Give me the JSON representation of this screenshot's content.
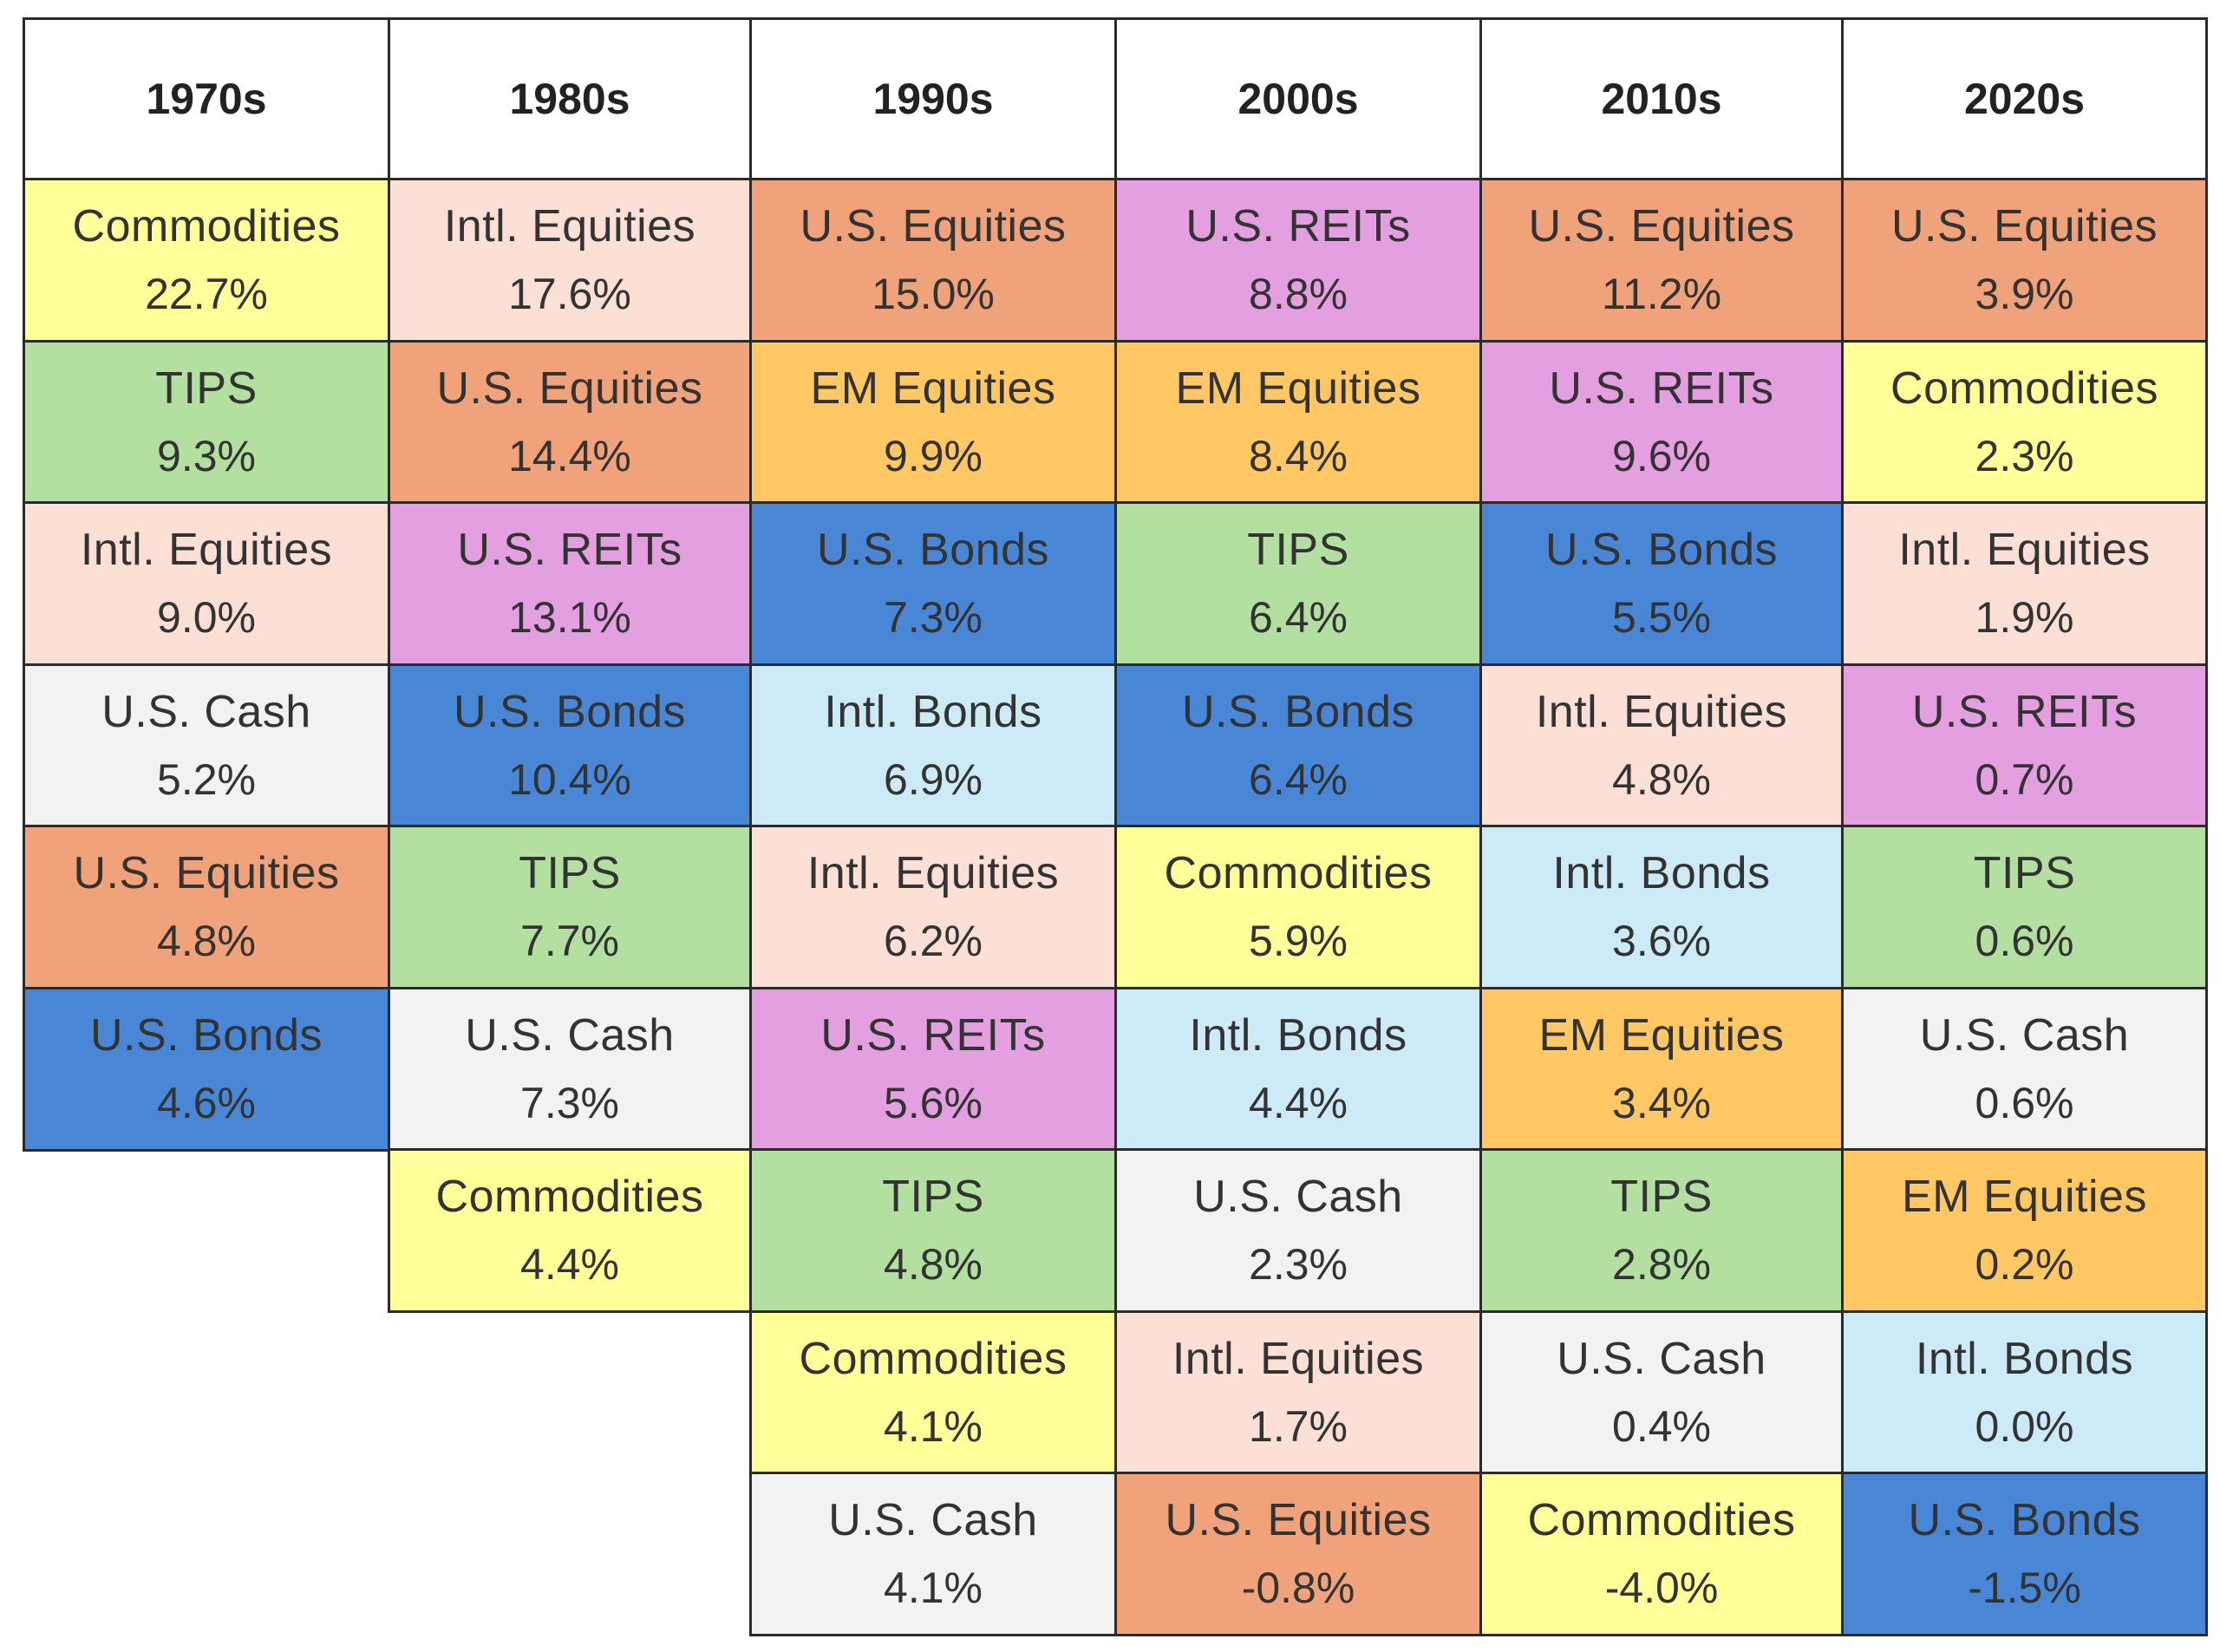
{
  "chart_data": {
    "type": "table",
    "title": "",
    "decades": [
      "1970s",
      "1980s",
      "1990s",
      "2000s",
      "2010s",
      "2020s"
    ],
    "columns": [
      {
        "decade": "1970s",
        "rows": [
          {
            "asset": "Commodities",
            "return": "22.7%"
          },
          {
            "asset": "TIPS",
            "return": "9.3%"
          },
          {
            "asset": "Intl. Equities",
            "return": "9.0%"
          },
          {
            "asset": "U.S. Cash",
            "return": "5.2%"
          },
          {
            "asset": "U.S. Equities",
            "return": "4.8%"
          },
          {
            "asset": "U.S. Bonds",
            "return": "4.6%"
          }
        ]
      },
      {
        "decade": "1980s",
        "rows": [
          {
            "asset": "Intl. Equities",
            "return": "17.6%"
          },
          {
            "asset": "U.S. Equities",
            "return": "14.4%"
          },
          {
            "asset": "U.S. REITs",
            "return": "13.1%"
          },
          {
            "asset": "U.S. Bonds",
            "return": "10.4%"
          },
          {
            "asset": "TIPS",
            "return": "7.7%"
          },
          {
            "asset": "U.S. Cash",
            "return": "7.3%"
          },
          {
            "asset": "Commodities",
            "return": "4.4%"
          }
        ]
      },
      {
        "decade": "1990s",
        "rows": [
          {
            "asset": "U.S. Equities",
            "return": "15.0%"
          },
          {
            "asset": "EM Equities",
            "return": "9.9%"
          },
          {
            "asset": "U.S. Bonds",
            "return": "7.3%"
          },
          {
            "asset": "Intl. Bonds",
            "return": "6.9%"
          },
          {
            "asset": "Intl. Equities",
            "return": "6.2%"
          },
          {
            "asset": "U.S. REITs",
            "return": "5.6%"
          },
          {
            "asset": "TIPS",
            "return": "4.8%"
          },
          {
            "asset": "Commodities",
            "return": "4.1%"
          },
          {
            "asset": "U.S. Cash",
            "return": "4.1%"
          }
        ]
      },
      {
        "decade": "2000s",
        "rows": [
          {
            "asset": "U.S. REITs",
            "return": "8.8%"
          },
          {
            "asset": "EM Equities",
            "return": "8.4%"
          },
          {
            "asset": "TIPS",
            "return": "6.4%"
          },
          {
            "asset": "U.S. Bonds",
            "return": "6.4%"
          },
          {
            "asset": "Commodities",
            "return": "5.9%"
          },
          {
            "asset": "Intl. Bonds",
            "return": "4.4%"
          },
          {
            "asset": "U.S. Cash",
            "return": "2.3%"
          },
          {
            "asset": "Intl. Equities",
            "return": "1.7%"
          },
          {
            "asset": "U.S. Equities",
            "return": "-0.8%"
          }
        ]
      },
      {
        "decade": "2010s",
        "rows": [
          {
            "asset": "U.S. Equities",
            "return": "11.2%"
          },
          {
            "asset": "U.S. REITs",
            "return": "9.6%"
          },
          {
            "asset": "U.S. Bonds",
            "return": "5.5%"
          },
          {
            "asset": "Intl. Equities",
            "return": "4.8%"
          },
          {
            "asset": "Intl. Bonds",
            "return": "3.6%"
          },
          {
            "asset": "EM Equities",
            "return": "3.4%"
          },
          {
            "asset": "TIPS",
            "return": "2.8%"
          },
          {
            "asset": "U.S. Cash",
            "return": "0.4%"
          },
          {
            "asset": "Commodities",
            "return": "-4.0%"
          }
        ]
      },
      {
        "decade": "2020s",
        "rows": [
          {
            "asset": "U.S. Equities",
            "return": "3.9%"
          },
          {
            "asset": "Commodities",
            "return": "2.3%"
          },
          {
            "asset": "Intl. Equities",
            "return": "1.9%"
          },
          {
            "asset": "U.S. REITs",
            "return": "0.7%"
          },
          {
            "asset": "TIPS",
            "return": "0.6%"
          },
          {
            "asset": "U.S. Cash",
            "return": "0.6%"
          },
          {
            "asset": "EM Equities",
            "return": "0.2%"
          },
          {
            "asset": "Intl. Bonds",
            "return": "0.0%"
          },
          {
            "asset": "U.S. Bonds",
            "return": "-1.5%"
          }
        ]
      }
    ],
    "asset_colors": {
      "Commodities": "#FFFF99",
      "TIPS": "#B3E0A0",
      "Intl. Equities": "#FCE0D6",
      "U.S. Cash": "#F2F2F2",
      "U.S. Equities": "#F0A27A",
      "U.S. Bonds": "#4A86D6",
      "U.S. REITs": "#E39FE0",
      "EM Equities": "#FFC865",
      "Intl. Bonds": "#CDEAF7"
    }
  }
}
